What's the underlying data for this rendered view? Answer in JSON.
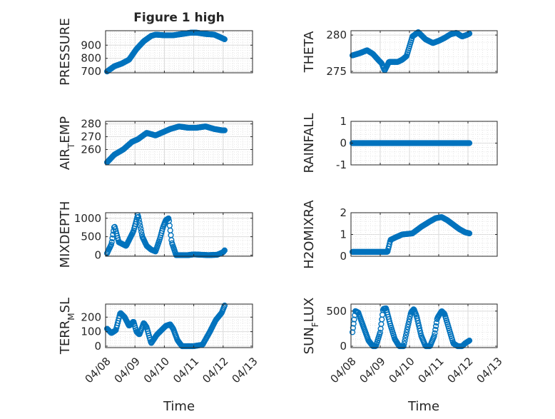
{
  "figure": {
    "title": "Figure 1 high",
    "xlabel": "Time",
    "x_tick_labels": [
      "04/08",
      "04/09",
      "04/10",
      "04/11",
      "04/12",
      "04/13"
    ],
    "marker_color": "#0072BD"
  },
  "chart_data": [
    {
      "type": "scatter",
      "ylabel": "PRESSURE",
      "ylim": [
        690,
        1010
      ],
      "yticks": [
        700,
        800,
        900
      ],
      "ytick_labels": [
        "700",
        "800",
        "900"
      ],
      "x_ticks_days": [
        8,
        9,
        10,
        11,
        12,
        13
      ],
      "x_knots": [
        8.05,
        8.3,
        8.55,
        8.8,
        9.05,
        9.3,
        9.55,
        9.7,
        10.0,
        10.3,
        10.6,
        10.9,
        11.1,
        11.4,
        11.7,
        12.0,
        12.05
      ],
      "y_knots": [
        700,
        740,
        760,
        790,
        870,
        930,
        970,
        980,
        975,
        975,
        985,
        995,
        995,
        985,
        980,
        950,
        945
      ]
    },
    {
      "type": "scatter",
      "ylabel": "THETA",
      "ylim": [
        274.8,
        280.6
      ],
      "yticks": [
        275,
        280
      ],
      "ytick_labels": [
        "275",
        "280"
      ],
      "x_ticks_days": [
        8,
        9,
        10,
        11,
        12,
        13
      ],
      "x_knots": [
        8.05,
        8.3,
        8.55,
        8.75,
        8.95,
        9.05,
        9.15,
        9.3,
        9.6,
        9.75,
        9.9,
        10.1,
        10.3,
        10.55,
        10.8,
        11.0,
        11.2,
        11.4,
        11.6,
        11.8,
        11.95,
        12.05
      ],
      "y_knots": [
        277.2,
        277.5,
        277.9,
        277.4,
        276.5,
        276.1,
        275.1,
        276.3,
        276.3,
        276.6,
        277.1,
        279.8,
        280.4,
        279.4,
        278.9,
        279.2,
        279.6,
        280.1,
        280.3,
        279.8,
        280.0,
        280.2
      ]
    },
    {
      "type": "scatter",
      "ylabel": "AIR_TEMP",
      "ylim": [
        248,
        282
      ],
      "yticks": [
        260,
        270,
        280
      ],
      "ytick_labels": [
        "260",
        "270",
        "280"
      ],
      "x_ticks_days": [
        8,
        9,
        10,
        11,
        12,
        13
      ],
      "x_knots": [
        8.05,
        8.3,
        8.6,
        8.9,
        9.1,
        9.4,
        9.7,
        9.9,
        10.2,
        10.5,
        10.8,
        11.1,
        11.4,
        11.7,
        11.95,
        12.05
      ],
      "y_knots": [
        250,
        256,
        260,
        266,
        268,
        273,
        271,
        273,
        276,
        278,
        277,
        277,
        278,
        276,
        275,
        275
      ]
    },
    {
      "type": "scatter",
      "ylabel": "RAINFALL",
      "ylim": [
        -1,
        1
      ],
      "yticks": [
        -1,
        0,
        1
      ],
      "ytick_labels": [
        "-1",
        "0",
        "1"
      ],
      "x_ticks_days": [
        8,
        9,
        10,
        11,
        12,
        13
      ],
      "x_knots": [
        8.05,
        12.05
      ],
      "y_knots": [
        0,
        0
      ]
    },
    {
      "type": "scatter",
      "ylabel": "MIXDEPTH",
      "ylim": [
        -30,
        1150
      ],
      "yticks": [
        0,
        500,
        1000
      ],
      "ytick_labels": [
        "0",
        "500",
        "1000"
      ],
      "x_ticks_days": [
        8,
        9,
        10,
        11,
        12,
        13
      ],
      "x_knots": [
        8.05,
        8.2,
        8.3,
        8.45,
        8.7,
        8.95,
        9.1,
        9.25,
        9.4,
        9.55,
        9.7,
        9.85,
        9.95,
        10.05,
        10.15,
        10.25,
        10.4,
        10.6,
        10.8,
        11.0,
        11.5,
        11.8,
        12.0,
        12.05
      ],
      "y_knots": [
        50,
        300,
        800,
        350,
        250,
        650,
        1100,
        500,
        250,
        150,
        100,
        450,
        750,
        950,
        1000,
        350,
        0,
        0,
        0,
        20,
        0,
        10,
        80,
        130
      ]
    },
    {
      "type": "scatter",
      "ylabel": "H2OMIXRA",
      "ylim": [
        0,
        2
      ],
      "yticks": [
        0,
        1,
        2
      ],
      "ytick_labels": [
        "0",
        "1",
        "2"
      ],
      "x_ticks_days": [
        8,
        9,
        10,
        11,
        12,
        13
      ],
      "x_knots": [
        8.05,
        8.4,
        8.8,
        9.1,
        9.25,
        9.35,
        9.5,
        9.75,
        10.1,
        10.4,
        10.7,
        10.9,
        11.1,
        11.3,
        11.5,
        11.7,
        11.9,
        12.05
      ],
      "y_knots": [
        0.2,
        0.2,
        0.2,
        0.2,
        0.2,
        0.75,
        0.85,
        1.0,
        1.05,
        1.35,
        1.6,
        1.75,
        1.8,
        1.65,
        1.45,
        1.25,
        1.1,
        1.05
      ]
    },
    {
      "type": "scatter",
      "ylabel": "TERR_MSL",
      "ylim": [
        -10,
        290
      ],
      "yticks": [
        0,
        100,
        200
      ],
      "ytick_labels": [
        "0",
        "100",
        "200"
      ],
      "x_ticks_days": [
        8,
        9,
        10,
        11,
        12,
        13
      ],
      "x_knots": [
        8.05,
        8.2,
        8.35,
        8.5,
        8.65,
        8.8,
        8.95,
        9.05,
        9.15,
        9.3,
        9.4,
        9.55,
        9.75,
        9.9,
        10.05,
        10.2,
        10.3,
        10.45,
        10.6,
        10.75,
        11.0,
        11.3,
        11.55,
        11.75,
        11.95,
        12.05
      ],
      "y_knots": [
        120,
        90,
        110,
        230,
        200,
        140,
        170,
        100,
        80,
        160,
        130,
        20,
        80,
        110,
        140,
        150,
        120,
        40,
        0,
        0,
        0,
        10,
        100,
        180,
        230,
        280
      ]
    },
    {
      "type": "scatter",
      "ylabel": "SUN_FLUX",
      "ylim": [
        -20,
        600
      ],
      "yticks": [
        0,
        500
      ],
      "ytick_labels": [
        "0",
        "500"
      ],
      "x_ticks_days": [
        8,
        9,
        10,
        11,
        12,
        13
      ],
      "x_knots": [
        8.05,
        8.15,
        8.25,
        8.45,
        8.6,
        8.75,
        8.85,
        9.0,
        9.1,
        9.2,
        9.35,
        9.5,
        9.65,
        9.8,
        9.9,
        10.05,
        10.15,
        10.25,
        10.4,
        10.55,
        10.7,
        10.85,
        10.95,
        11.1,
        11.2,
        11.35,
        11.5,
        11.65,
        11.8,
        11.9,
        12.05
      ],
      "y_knots": [
        200,
        500,
        480,
        250,
        80,
        0,
        0,
        200,
        530,
        540,
        300,
        100,
        0,
        0,
        200,
        480,
        530,
        420,
        150,
        0,
        0,
        150,
        400,
        500,
        460,
        250,
        40,
        0,
        0,
        40,
        80
      ]
    }
  ]
}
